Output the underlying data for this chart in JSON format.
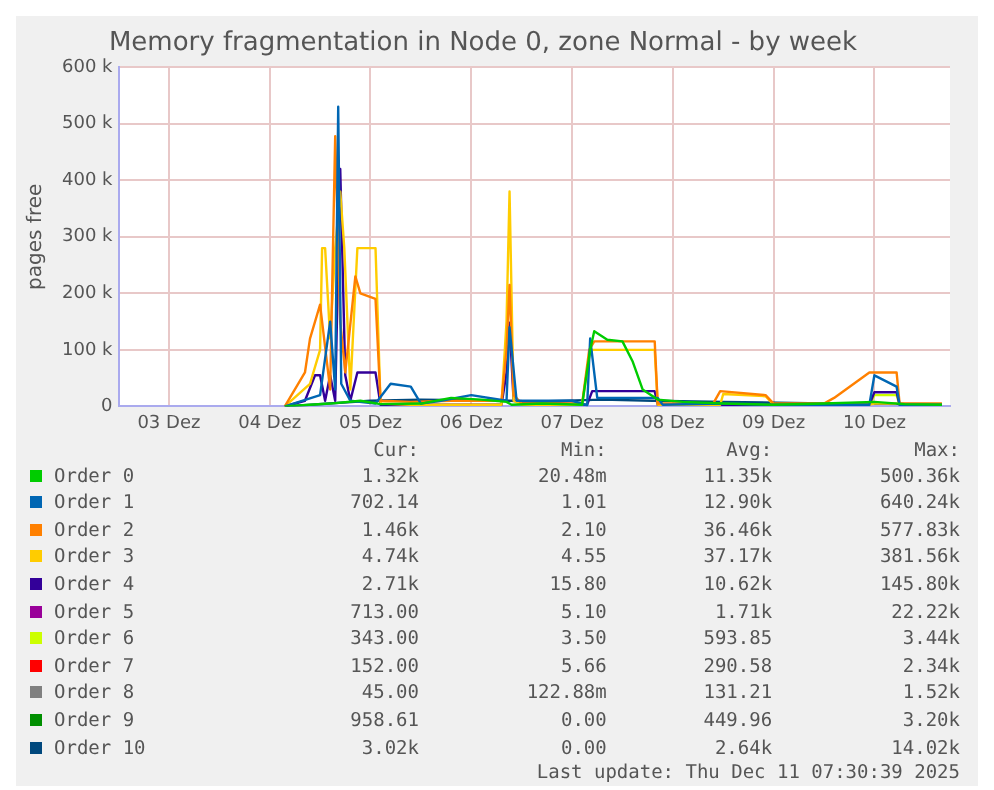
{
  "chart_data": {
    "type": "line",
    "title": "Memory fragmentation in Node 0, zone Normal - by week",
    "ylabel": "pages free",
    "xlim": [
      "2025-12-03T00:00",
      "2025-12-11T06:00"
    ],
    "xticks": [
      {
        "value": "2025-12-03T12:00",
        "label": "03 Dez"
      },
      {
        "value": "2025-12-04T12:00",
        "label": "04 Dez"
      },
      {
        "value": "2025-12-05T12:00",
        "label": "05 Dez"
      },
      {
        "value": "2025-12-06T12:00",
        "label": "06 Dez"
      },
      {
        "value": "2025-12-07T12:00",
        "label": "07 Dez"
      },
      {
        "value": "2025-12-08T12:00",
        "label": "08 Dez"
      },
      {
        "value": "2025-12-09T12:00",
        "label": "09 Dez"
      },
      {
        "value": "2025-12-10T12:00",
        "label": "10 Dez"
      }
    ],
    "ylim": [
      0,
      600
    ],
    "yticks": [
      0,
      {
        "value": 100,
        "label": "100 k"
      },
      {
        "value": 200,
        "label": "200 k"
      },
      {
        "value": 300,
        "label": "300 k"
      },
      {
        "value": 400,
        "label": "400 k"
      },
      {
        "value": 500,
        "label": "500 k"
      },
      {
        "value": 600,
        "label": "600 k"
      }
    ],
    "grid": true,
    "legend": "bottom",
    "marker": "none",
    "line_style": "solid",
    "series": [
      {
        "name": "Order 0",
        "color": "#00cc00",
        "x": [
          "2025-12-04T15:36",
          "2025-12-04T21:36",
          "2025-12-05T02:24",
          "2025-12-05T09:36",
          "2025-12-05T14:24",
          "2025-12-06T00:00",
          "2025-12-06T07:12",
          "2025-12-06T14:24",
          "2025-12-06T20:24",
          "2025-12-06T21:36",
          "2025-12-07T04:48",
          "2025-12-07T14:24",
          "2025-12-07T16:19",
          "2025-12-07T17:17",
          "2025-12-07T20:24",
          "2025-12-08T00:00",
          "2025-12-08T02:24",
          "2025-12-08T04:48",
          "2025-12-08T08:24",
          "2025-12-08T14:24",
          "2025-12-09T00:00",
          "2025-12-09T12:00",
          "2025-12-10T00:00",
          "2025-12-10T12:00",
          "2025-12-10T19:12",
          "2025-12-11T04:05"
        ],
        "values": [
          0,
          3,
          5,
          10,
          4,
          5,
          15,
          12,
          8,
          3,
          5,
          3,
          100,
          133,
          118,
          115,
          80,
          30,
          12,
          8,
          5,
          3,
          5,
          8,
          4,
          3
        ]
      },
      {
        "name": "Order 1",
        "color": "#0066b3",
        "x": [
          "2025-12-04T15:36",
          "2025-12-05T00:00",
          "2025-12-05T02:24",
          "2025-12-05T03:36",
          "2025-12-05T04:19",
          "2025-12-05T05:02",
          "2025-12-05T07:12",
          "2025-12-05T13:12",
          "2025-12-05T16:48",
          "2025-12-05T21:36",
          "2025-12-06T00:00",
          "2025-12-06T04:48",
          "2025-12-06T12:00",
          "2025-12-06T20:24",
          "2025-12-06T21:07",
          "2025-12-06T22:48",
          "2025-12-07T12:00",
          "2025-12-07T15:36",
          "2025-12-07T16:19",
          "2025-12-07T18:00",
          "2025-12-08T08:24",
          "2025-12-08T09:36",
          "2025-12-09T00:00",
          "2025-12-09T12:00",
          "2025-12-10T10:48",
          "2025-12-10T12:00",
          "2025-12-10T17:17",
          "2025-12-10T18:00",
          "2025-12-11T04:05"
        ],
        "values": [
          0,
          20,
          150,
          30,
          530,
          40,
          10,
          5,
          40,
          35,
          5,
          10,
          20,
          10,
          140,
          10,
          10,
          2,
          120,
          15,
          15,
          3,
          5,
          3,
          3,
          55,
          35,
          3,
          3
        ]
      },
      {
        "name": "Order 2",
        "color": "#ff8000",
        "x": [
          "2025-12-04T15:36",
          "2025-12-04T20:24",
          "2025-12-04T21:36",
          "2025-12-05T00:00",
          "2025-12-05T02:24",
          "2025-12-05T03:36",
          "2025-12-05T04:48",
          "2025-12-05T06:00",
          "2025-12-05T08:24",
          "2025-12-05T09:36",
          "2025-12-05T13:12",
          "2025-12-05T14:24",
          "2025-12-05T21:36",
          "2025-12-06T07:12",
          "2025-12-06T19:12",
          "2025-12-06T20:24",
          "2025-12-06T21:07",
          "2025-12-06T22:05",
          "2025-12-07T00:00",
          "2025-12-07T14:24",
          "2025-12-07T16:05",
          "2025-12-07T17:17",
          "2025-12-08T07:41",
          "2025-12-08T08:24",
          "2025-12-08T21:36",
          "2025-12-08T23:17",
          "2025-12-09T10:05",
          "2025-12-09T12:00",
          "2025-12-10T00:00",
          "2025-12-10T02:24",
          "2025-12-10T10:48",
          "2025-12-10T17:17",
          "2025-12-10T18:00",
          "2025-12-11T04:05"
        ],
        "values": [
          0,
          60,
          120,
          180,
          30,
          478,
          150,
          60,
          230,
          200,
          190,
          10,
          8,
          10,
          10,
          100,
          215,
          20,
          5,
          5,
          100,
          115,
          115,
          5,
          5,
          27,
          20,
          5,
          5,
          15,
          60,
          60,
          5,
          5
        ]
      },
      {
        "name": "Order 3",
        "color": "#ffcc00",
        "x": [
          "2025-12-04T15:36",
          "2025-12-04T21:36",
          "2025-12-05T00:00",
          "2025-12-05T00:29",
          "2025-12-05T01:12",
          "2025-12-05T02:24",
          "2025-12-05T03:36",
          "2025-12-05T04:48",
          "2025-12-05T05:46",
          "2025-12-05T07:12",
          "2025-12-05T08:53",
          "2025-12-05T13:12",
          "2025-12-05T14:24",
          "2025-12-05T21:36",
          "2025-12-06T19:12",
          "2025-12-06T20:24",
          "2025-12-06T21:07",
          "2025-12-06T22:05",
          "2025-12-07T00:00",
          "2025-12-07T14:24",
          "2025-12-07T16:05",
          "2025-12-07T16:48",
          "2025-12-08T07:41",
          "2025-12-08T08:24",
          "2025-12-08T23:17",
          "2025-12-09T00:00",
          "2025-12-09T10:05",
          "2025-12-09T12:00",
          "2025-12-10T10:48",
          "2025-12-10T12:00",
          "2025-12-10T17:17"
        ],
        "values": [
          0,
          40,
          100,
          280,
          280,
          120,
          280,
          380,
          280,
          30,
          280,
          280,
          5,
          3,
          3,
          150,
          380,
          10,
          3,
          3,
          90,
          100,
          100,
          3,
          3,
          22,
          18,
          3,
          3,
          5,
          5
        ]
      },
      {
        "name": "Order 4",
        "color": "#330099",
        "x": [
          "2025-12-04T15:36",
          "2025-12-04T20:24",
          "2025-12-04T22:48",
          "2025-12-05T00:00",
          "2025-12-05T01:12",
          "2025-12-05T02:24",
          "2025-12-05T03:36",
          "2025-12-05T04:48",
          "2025-12-05T06:00",
          "2025-12-05T07:12",
          "2025-12-05T08:53",
          "2025-12-05T13:12",
          "2025-12-05T14:24",
          "2025-12-06T19:12",
          "2025-12-06T20:24",
          "2025-12-06T21:07",
          "2025-12-06T22:05",
          "2025-12-07T15:36",
          "2025-12-07T16:48",
          "2025-12-08T07:41",
          "2025-12-08T08:24",
          "2025-12-10T10:48",
          "2025-12-10T12:00",
          "2025-12-10T17:17",
          "2025-12-10T18:00",
          "2025-12-11T04:05"
        ],
        "values": [
          0,
          10,
          55,
          55,
          10,
          55,
          10,
          420,
          55,
          10,
          60,
          60,
          3,
          3,
          60,
          148,
          10,
          3,
          27,
          27,
          3,
          3,
          25,
          25,
          3,
          3
        ]
      },
      {
        "name": "Order 5",
        "color": "#990099"
      },
      {
        "name": "Order 6",
        "color": "#ccff00",
        "x": [
          "2025-12-10T10:48",
          "2025-12-10T12:00",
          "2025-12-10T17:17",
          "2025-12-10T18:00"
        ],
        "values": [
          2,
          20,
          20,
          2
        ]
      },
      {
        "name": "Order 7",
        "color": "#ff0000"
      },
      {
        "name": "Order 8",
        "color": "#808080"
      },
      {
        "name": "Order 9",
        "color": "#008f00"
      },
      {
        "name": "Order 10",
        "color": "#00487d",
        "x": [
          "2025-12-04T15:36",
          "2025-12-05T12:00",
          "2025-12-06T00:00",
          "2025-12-06T21:36",
          "2025-12-07T00:00",
          "2025-12-07T19:12",
          "2025-12-08T07:12",
          "2025-12-09T00:00",
          "2025-12-10T00:00",
          "2025-12-11T04:05"
        ],
        "values": [
          0,
          10,
          12,
          10,
          8,
          12,
          10,
          8,
          5,
          4
        ]
      }
    ],
    "annotations": [
      "Cur:",
      "Min:",
      "Avg:",
      "Max:",
      "1.32k",
      "20.48m",
      "11.35k",
      "500.36k",
      "702.14",
      "1.01",
      "12.90k",
      "640.24k",
      "1.46k",
      "2.10",
      "36.46k",
      "577.83k",
      "4.74k",
      "4.55",
      "37.17k",
      "381.56k",
      "2.71k",
      "15.80",
      "10.62k",
      "145.80k",
      "713.00",
      "5.10",
      "1.71k",
      "22.22k",
      "343.00",
      "3.50",
      "593.85",
      "3.44k",
      "152.00",
      "5.66",
      "290.58",
      "2.34k",
      "45.00",
      "122.88m",
      "131.21",
      "1.52k",
      "958.61",
      "0.00",
      "449.96",
      "3.20k",
      "3.02k",
      "0.00",
      "2.64k",
      "14.02k",
      "Last update: Thu Dec 11 07:30:39 2025"
    ]
  }
}
